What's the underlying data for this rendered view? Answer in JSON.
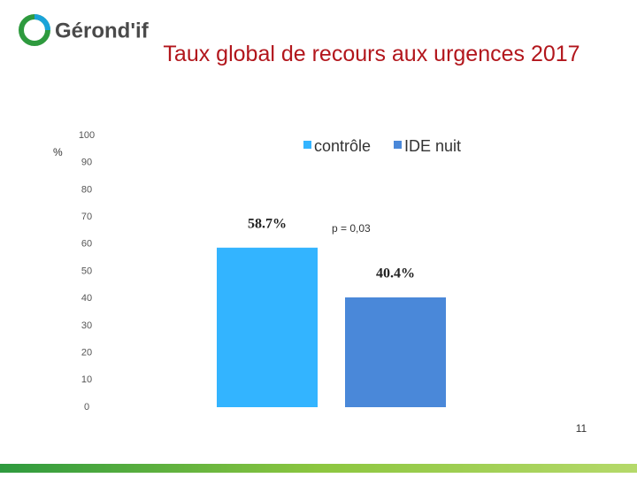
{
  "logo": "Gérond'if",
  "page_number": "11",
  "chart_data": {
    "type": "bar",
    "title": "Taux global de recours aux urgences 2017",
    "y_label": "%",
    "annotation": "p = 0,03",
    "categories": [
      null
    ],
    "series": [
      {
        "name": "contrôle",
        "color": "#33b4ff",
        "values": [
          58.7
        ],
        "value_labels": [
          "58.7%"
        ]
      },
      {
        "name": "IDE nuit",
        "color": "#4a88d9",
        "values": [
          40.4
        ],
        "value_labels": [
          "40.4%"
        ]
      }
    ],
    "ylim": [
      0,
      100
    ],
    "yticks": [
      0,
      10,
      20,
      30,
      40,
      50,
      60,
      70,
      80,
      90,
      100
    ],
    "grid": false,
    "legend": "top"
  }
}
